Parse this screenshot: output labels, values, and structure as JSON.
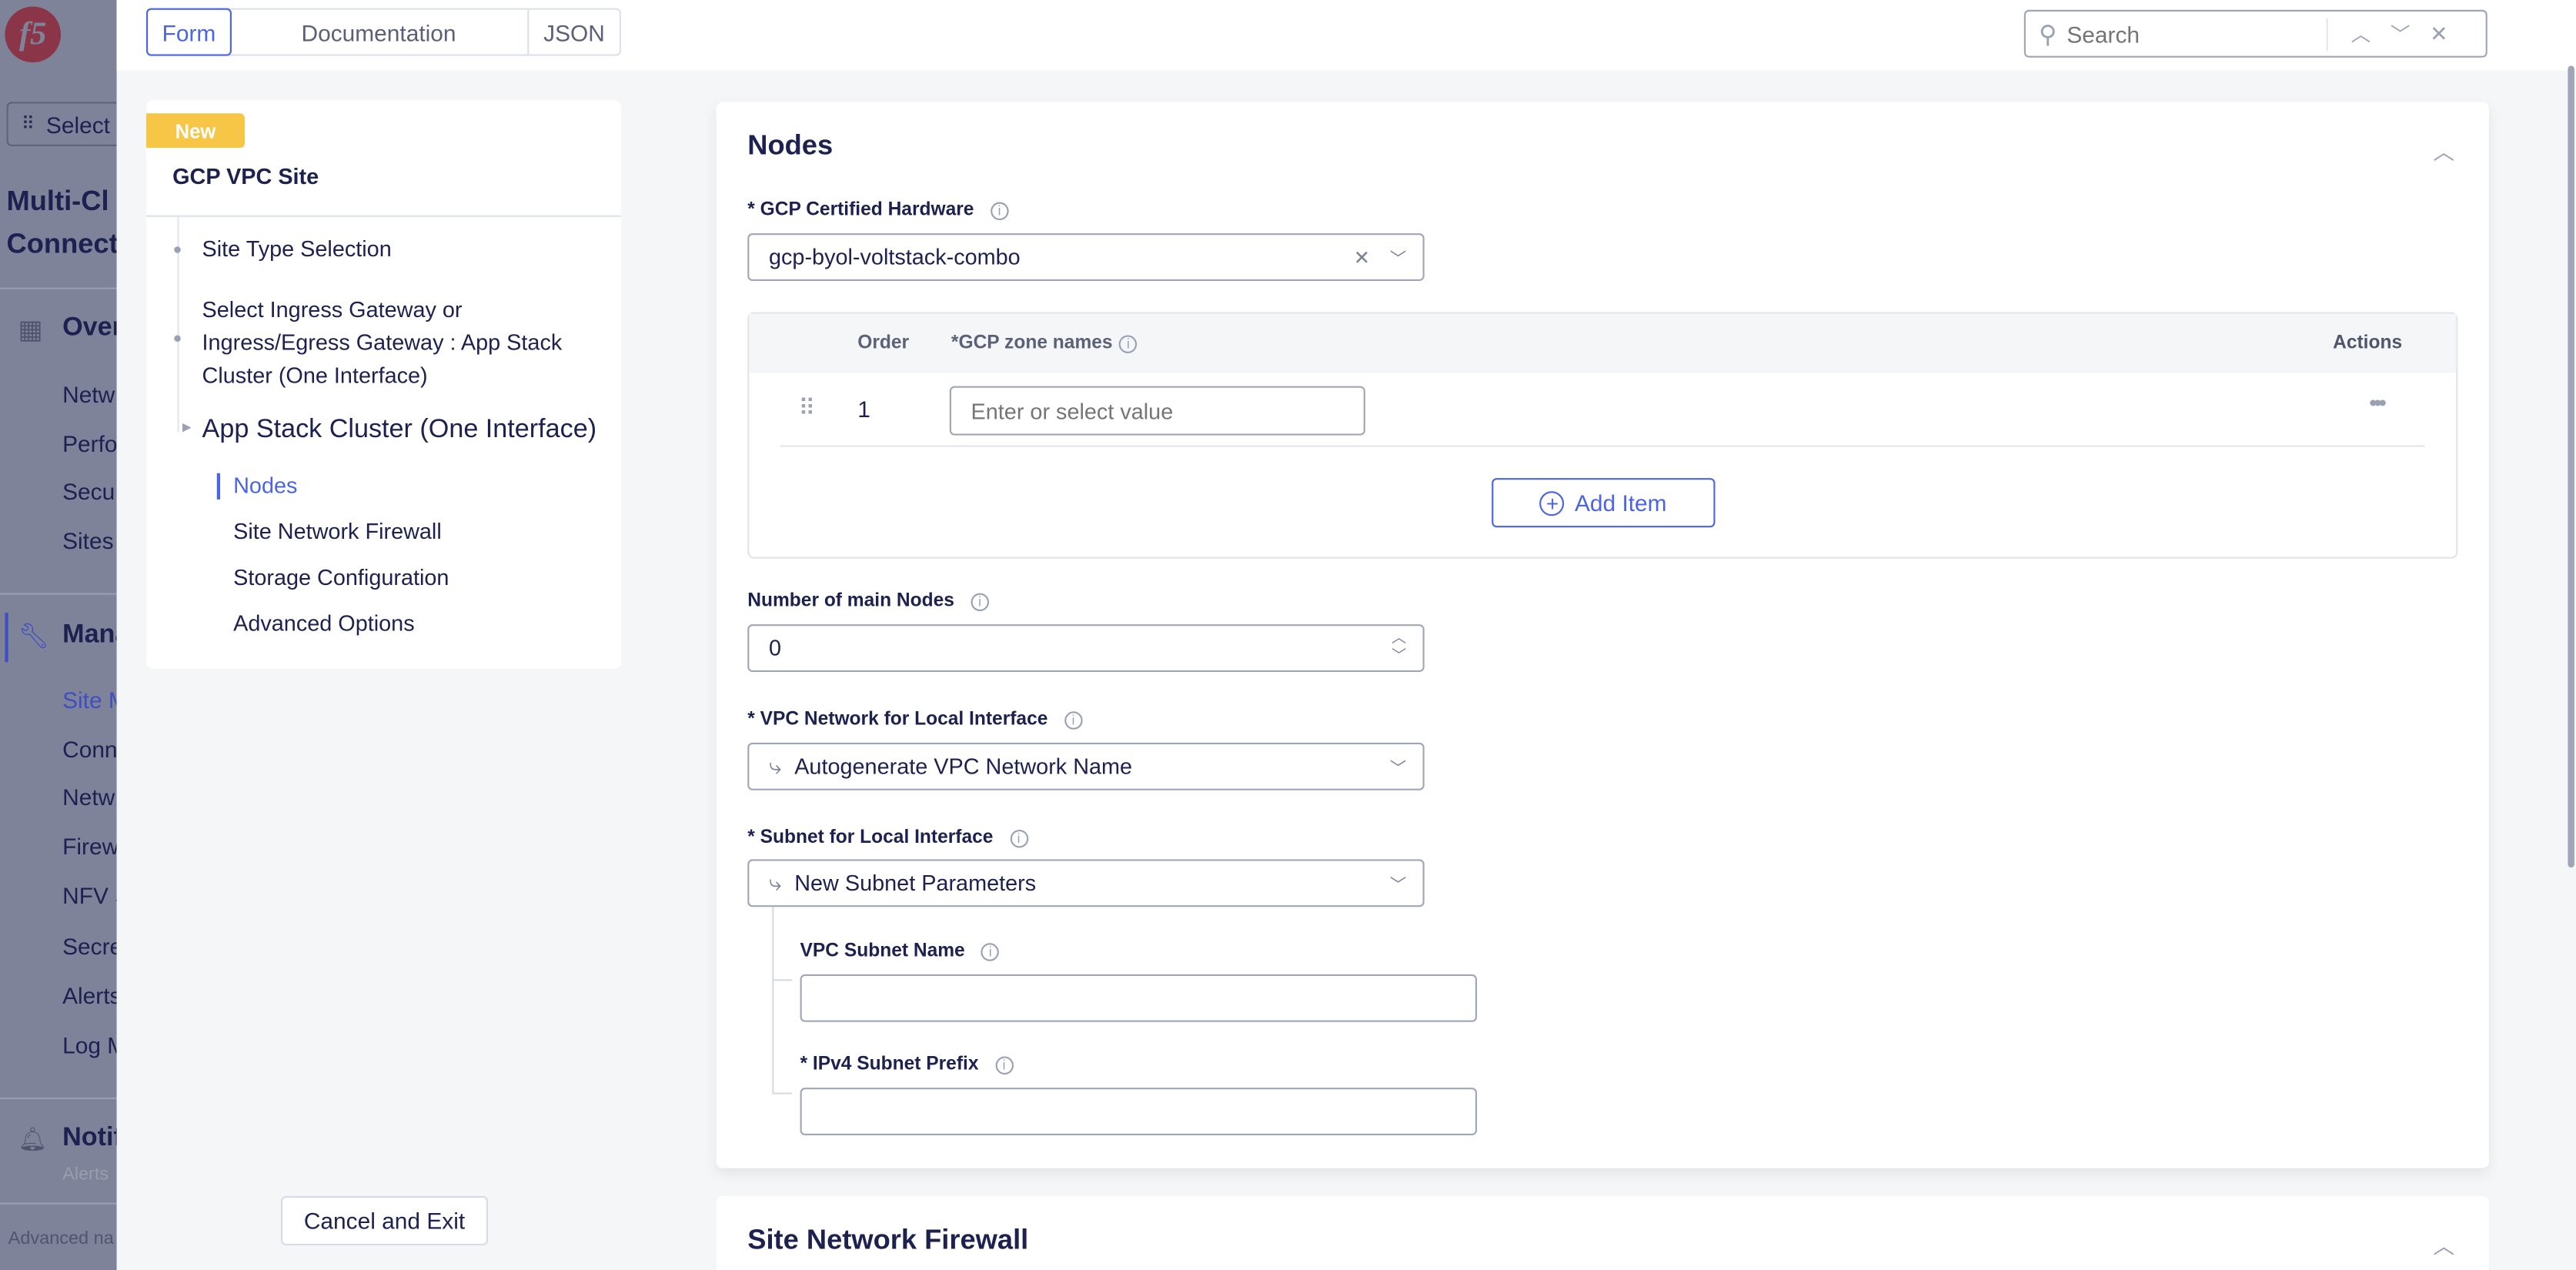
{
  "app_nav": {
    "logo": "f5",
    "select_label": "Select",
    "workspace_title_line1": "Multi-Cl",
    "workspace_title_line2": "Connect",
    "overview": "Over",
    "overview_items": [
      "Netw",
      "Perfo",
      "Secu",
      "Sites"
    ],
    "manage": "Mana",
    "manage_items": [
      "Site M",
      "Conn",
      "Netw",
      "Firew",
      "NFV S",
      "Secre",
      "Alerts",
      "Log M"
    ],
    "notifications": "Notif",
    "notifications_sub": "Alerts",
    "advanced": "Advanced na"
  },
  "tabs": [
    "Form",
    "Documentation",
    "JSON"
  ],
  "active_tab": "Form",
  "search": {
    "placeholder": "Search"
  },
  "steps": {
    "badge": "New",
    "title": "GCP VPC Site",
    "items": [
      "Site Type Selection",
      "Select Ingress Gateway or Ingress/Egress Gateway : App Stack Cluster (One Interface)",
      "App Stack Cluster (One Interface)"
    ],
    "sub_items": [
      "Nodes",
      "Site Network Firewall",
      "Storage Configuration",
      "Advanced Options"
    ],
    "active_sub": "Nodes",
    "cancel_label": "Cancel and Exit"
  },
  "nodes": {
    "title": "Nodes",
    "hardware_label": "* GCP Certified Hardware",
    "hardware_value": "gcp-byol-voltstack-combo",
    "table": {
      "col_order": "Order",
      "col_zone": "*GCP zone names",
      "col_actions": "Actions",
      "rows": [
        {
          "order": "1",
          "zone_placeholder": "Enter or select value"
        }
      ],
      "add_label": "Add Item"
    },
    "num_nodes_label": "Number of main Nodes",
    "num_nodes_value": "0",
    "vpc_label": "* VPC Network for Local Interface",
    "vpc_value": "Autogenerate VPC Network Name",
    "subnet_label": "* Subnet for Local Interface",
    "subnet_value": "New Subnet Parameters",
    "subnet_name_label": "VPC Subnet Name",
    "subnet_name_value": "",
    "ipv4_label": "* IPv4 Subnet Prefix",
    "ipv4_value": ""
  },
  "next_section": {
    "title": "Site Network Firewall"
  },
  "colors": {
    "accent": "#4b64e3",
    "badge": "#f7c646",
    "text": "#1d2150",
    "logo": "#a3293f"
  }
}
